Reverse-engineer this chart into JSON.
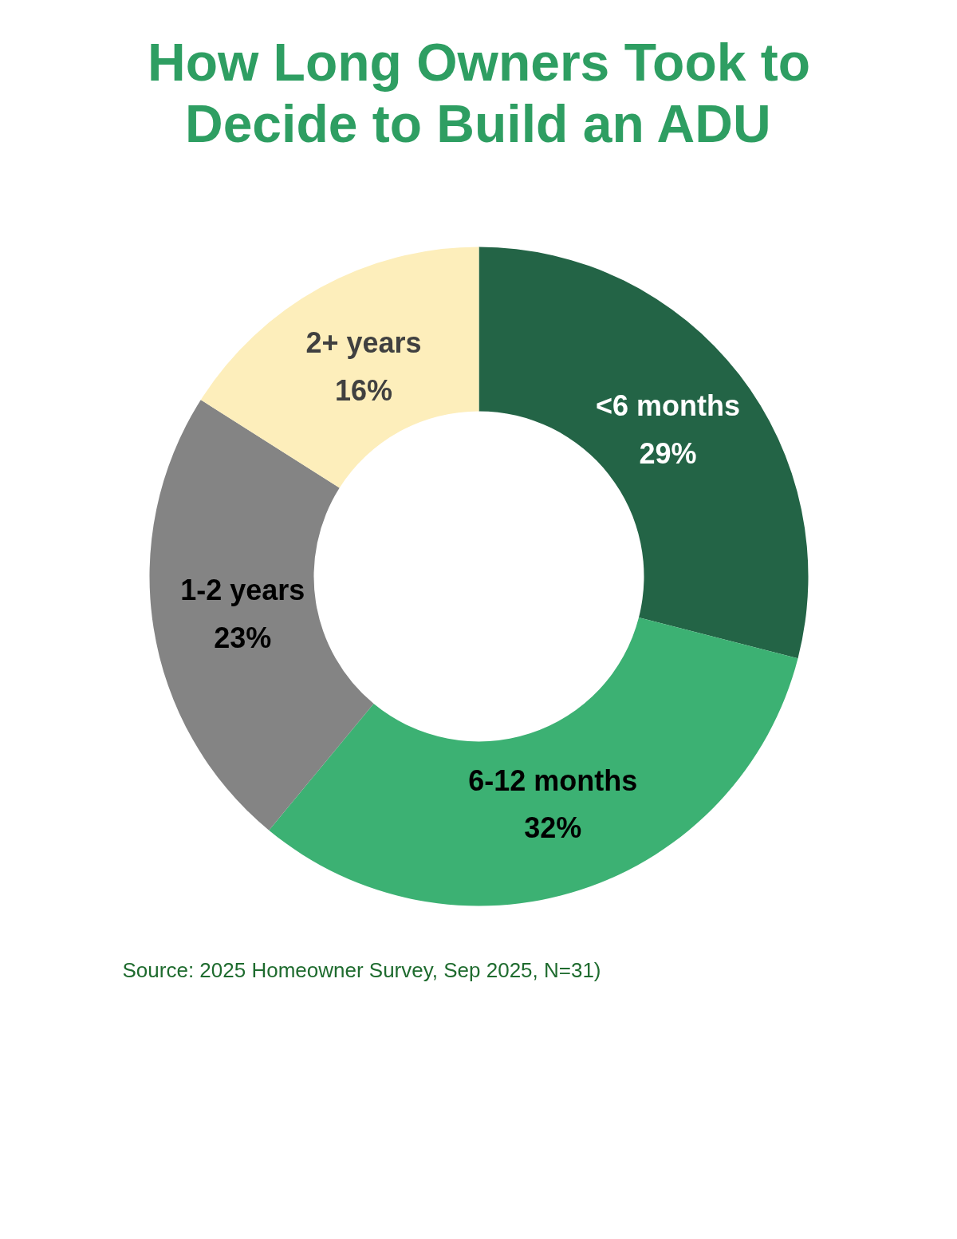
{
  "chart_data": {
    "type": "donut",
    "title": "How Long Owners Took to Decide to Build an ADU",
    "categories": [
      "<6 months",
      "6-12 months",
      "1-2 years",
      "2+ years"
    ],
    "values": [
      29,
      32,
      23,
      16
    ],
    "colors": [
      "#236446",
      "#3cb173",
      "#848484",
      "#fdeebb"
    ],
    "value_labels": [
      "29%",
      "32%",
      "23%",
      "16%"
    ],
    "annotations": [
      "Source: 2025 Homeowner Survey, Sep 2025, N=31)"
    ],
    "legend": false
  }
}
